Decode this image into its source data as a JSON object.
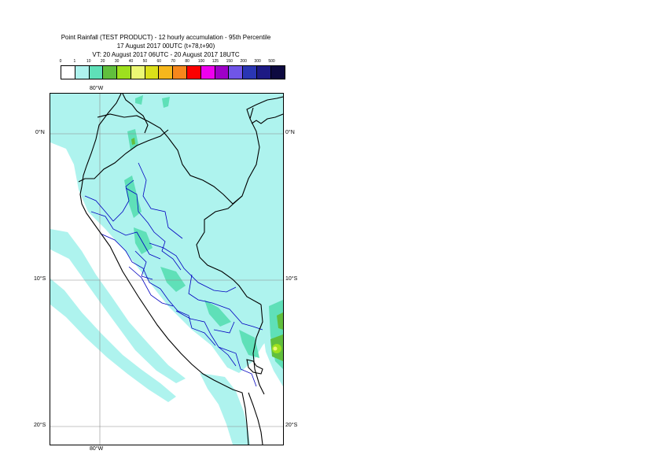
{
  "header": {
    "title_line1": "Point Rainfall (TEST PRODUCT) - 12 hourly accumulation - 95th Percentile",
    "title_line2": "17 August 2017 00UTC (t+78,t+90)",
    "title_line3": "VT: 20 August 2017 06UTC - 20 August 2017 18UTC"
  },
  "legend": {
    "ticks": [
      "0",
      "1",
      "10",
      "20",
      "30",
      "40",
      "50",
      "60",
      "70",
      "80",
      "100",
      "125",
      "150",
      "200",
      "300",
      "500"
    ],
    "colors": [
      "#ffffff",
      "#aef3ee",
      "#5fe0b8",
      "#61bf3d",
      "#9ee01e",
      "#ecf874",
      "#dce01a",
      "#f6b71c",
      "#f6871c",
      "#fb0000",
      "#ee00ee",
      "#9e00c8",
      "#7055e8",
      "#2a36b4",
      "#1d1a84",
      "#0d0a40"
    ]
  },
  "map": {
    "lon_labels": {
      "top": "80°W",
      "bottom": "80°W"
    },
    "lat_labels": [
      "0°N",
      "10°S",
      "20°S"
    ],
    "colors": {
      "light_rain": "#aef3ee",
      "moderate_rain": "#5fe0b8",
      "heavier_rain": "#61bf3d",
      "heavy_rain": "#9ee01e",
      "peak_rain": "#ecf874",
      "country_border": "#000000",
      "admin_border": "#0000c0",
      "graticule": "#8a8a8a"
    }
  }
}
